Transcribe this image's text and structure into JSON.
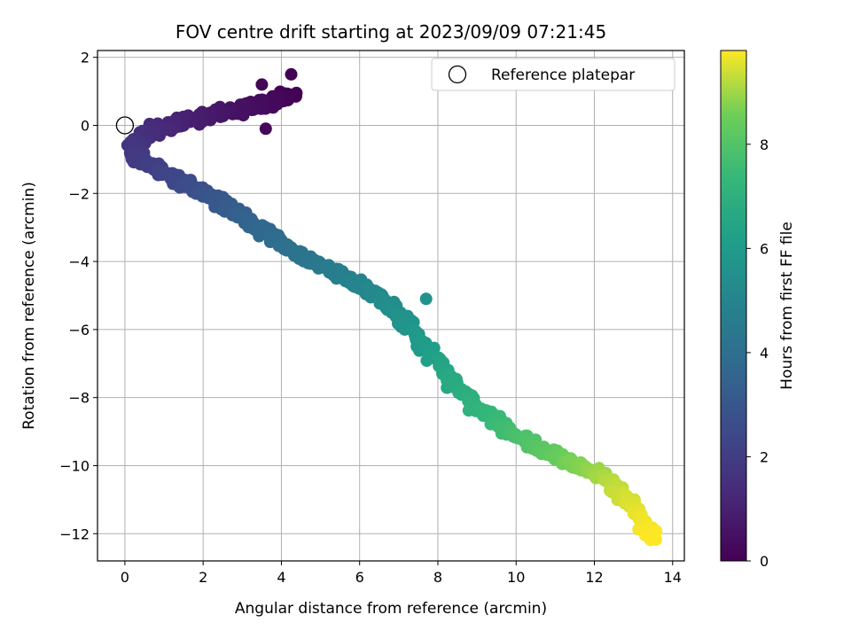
{
  "chart_data": {
    "type": "scatter",
    "title": "FOV centre drift starting at 2023/09/09 07:21:45",
    "xlabel": "Angular distance from reference (arcmin)",
    "ylabel": "Rotation from reference (arcmin)",
    "xlim": [
      -0.7,
      14.3
    ],
    "ylim": [
      -12.8,
      2.2
    ],
    "xticks": [
      0,
      2,
      4,
      6,
      8,
      10,
      12,
      14
    ],
    "yticks": [
      -12,
      -10,
      -8,
      -6,
      -4,
      -2,
      0,
      2
    ],
    "grid": true,
    "legend": {
      "placement": "upper-right",
      "entries": [
        "Reference platepar"
      ]
    },
    "reference_point": {
      "x": 0,
      "y": 0,
      "label": "Reference platepar"
    },
    "colorbar": {
      "label": "Hours from first FF file",
      "range": [
        0,
        9.8
      ],
      "ticks": [
        0,
        2,
        4,
        6,
        8
      ],
      "colormap": "viridis"
    },
    "path_waypoints": [
      {
        "x": 4.3,
        "y": 0.9,
        "hours": 0.0
      },
      {
        "x": 3.5,
        "y": 0.6,
        "hours": 0.3
      },
      {
        "x": 2.5,
        "y": 0.4,
        "hours": 0.6
      },
      {
        "x": 1.5,
        "y": 0.1,
        "hours": 1.0
      },
      {
        "x": 0.6,
        "y": -0.2,
        "hours": 1.4
      },
      {
        "x": 0.2,
        "y": -0.6,
        "hours": 1.7
      },
      {
        "x": 0.3,
        "y": -1.0,
        "hours": 1.9
      },
      {
        "x": 1.2,
        "y": -1.5,
        "hours": 2.3
      },
      {
        "x": 2.2,
        "y": -2.1,
        "hours": 2.9
      },
      {
        "x": 3.2,
        "y": -2.8,
        "hours": 3.5
      },
      {
        "x": 4.3,
        "y": -3.7,
        "hours": 4.1
      },
      {
        "x": 5.5,
        "y": -4.4,
        "hours": 4.7
      },
      {
        "x": 6.6,
        "y": -5.1,
        "hours": 5.3
      },
      {
        "x": 7.5,
        "y": -6.2,
        "hours": 5.9
      },
      {
        "x": 8.2,
        "y": -7.3,
        "hours": 6.5
      },
      {
        "x": 9.0,
        "y": -8.3,
        "hours": 7.1
      },
      {
        "x": 10.3,
        "y": -9.3,
        "hours": 7.9
      },
      {
        "x": 11.4,
        "y": -9.9,
        "hours": 8.6
      },
      {
        "x": 12.3,
        "y": -10.4,
        "hours": 9.1
      },
      {
        "x": 12.9,
        "y": -11.1,
        "hours": 9.5
      },
      {
        "x": 13.5,
        "y": -12.1,
        "hours": 9.8
      }
    ],
    "sample_points": [
      {
        "x": 4.25,
        "y": 1.5,
        "hours": 0.0
      },
      {
        "x": 3.6,
        "y": -0.1,
        "hours": 0.2
      },
      {
        "x": 3.5,
        "y": 1.2,
        "hours": 0.1
      },
      {
        "x": 13.3,
        "y": -12.05,
        "hours": 9.8
      },
      {
        "x": 13.55,
        "y": -12.15,
        "hours": 9.8
      },
      {
        "x": 13.55,
        "y": -11.95,
        "hours": 9.8
      },
      {
        "x": 7.7,
        "y": -5.1,
        "hours": 5.6
      }
    ],
    "point_count": 1050
  }
}
